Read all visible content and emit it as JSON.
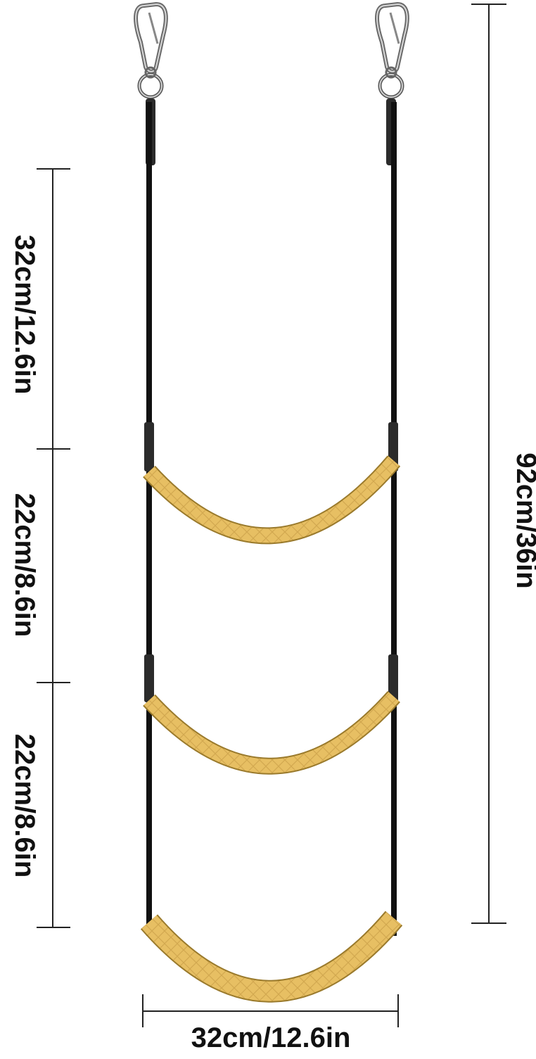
{
  "dimensions": {
    "segment_top": "32cm/12.6in",
    "segment_middle": "22cm/8.6in",
    "segment_bottom": "22cm/8.6in",
    "total_height": "92cm/36in",
    "width": "32cm/12.6in"
  },
  "product": {
    "rung_count": 3,
    "strap_color": "#111111",
    "rung_color": "#e7bf63",
    "rung_pattern_color": "#c9a24a",
    "metal_color": "#b5b5b5",
    "dimension_line_color": "#222222"
  },
  "icons": [
    "carabiner-icon",
    "carabiner-icon"
  ]
}
